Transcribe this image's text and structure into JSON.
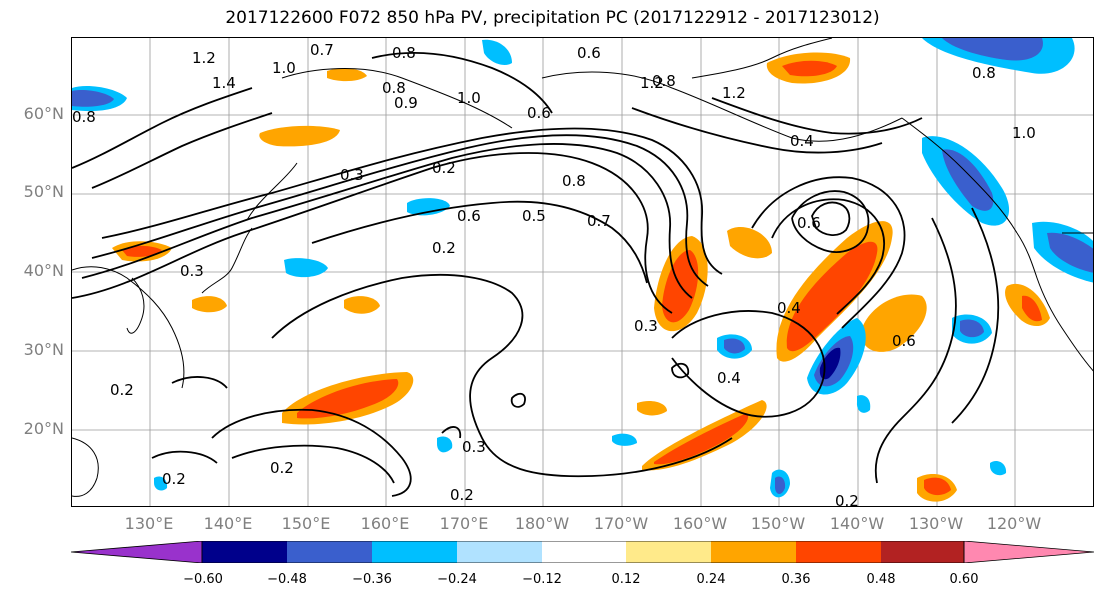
{
  "title": "2017122600 F072 850 hPa PV, precipitation PC (2017122912 - 2017123012)",
  "lat_labels": [
    "60°N",
    "50°N",
    "40°N",
    "30°N",
    "20°N"
  ],
  "lon_labels": [
    "130°E",
    "140°E",
    "150°E",
    "160°E",
    "170°E",
    "180°W",
    "170°W",
    "160°W",
    "150°W",
    "140°W",
    "130°W",
    "120°W"
  ],
  "colorbar": {
    "ticks": [
      "−0.60",
      "−0.48",
      "−0.36",
      "−0.24",
      "−0.12",
      "0.12",
      "0.24",
      "0.36",
      "0.48",
      "0.60"
    ],
    "colors": [
      "#9932cc",
      "#00008b",
      "#3a5fcd",
      "#00bfff",
      "#b0e2ff",
      "#ffffff",
      "#ffea8a",
      "#ffa500",
      "#ff4500",
      "#b22222",
      "#ff88b0"
    ]
  },
  "contour_labels": [
    "1.2",
    "0.7",
    "0.8",
    "0.6",
    "1.2",
    "1.4",
    "1.0",
    "0.8",
    "1.0",
    "0.9",
    "0.6",
    "0.3",
    "0.8",
    "0.8",
    "1.2",
    "0.8",
    "0.4",
    "1.0",
    "0.2",
    "0.3",
    "0.8",
    "0.6",
    "0.5",
    "0.7",
    "0.2",
    "0.6",
    "0.4",
    "0.3",
    "0.4",
    "0.6",
    "0.2",
    "0.2",
    "0.3",
    "0.2",
    "0.2",
    "0.2"
  ]
}
